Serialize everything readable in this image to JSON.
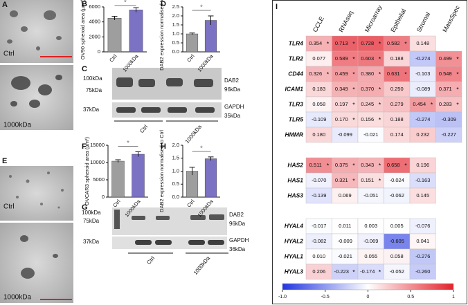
{
  "panels": {
    "A": {
      "letter": "A",
      "images": [
        {
          "label": "Ctrl"
        },
        {
          "label": "1000kDa"
        }
      ]
    },
    "E": {
      "letter": "E",
      "images": [
        {
          "label": "Ctrl"
        },
        {
          "label": "1000kDa"
        }
      ]
    },
    "C": {
      "letter": "C",
      "top_markers": [
        "100kDa",
        "75kDa"
      ],
      "top_target": "DAB2",
      "top_size": "96kDa",
      "bottom_marker": "37kDa",
      "bottom_target": "GAPDH",
      "bottom_size": "35kDa",
      "groups": [
        "Ctrl",
        "1000kDa"
      ]
    },
    "G": {
      "letter": "G",
      "top_markers": [
        "100kDa",
        "75kDa"
      ],
      "top_target": "DAB2",
      "top_size": "96kDa",
      "bottom_marker": "37kDa",
      "bottom_target": "GAPDH",
      "bottom_size": "36kDa",
      "groups": [
        "Ctrl",
        "1000kDa"
      ]
    }
  },
  "chart_data": [
    {
      "type": "bar",
      "letter": "B",
      "ylabel": "OV90 spheroid area (µm²)",
      "categories": [
        "Ctrl",
        "1000kDa"
      ],
      "values": [
        4500,
        5600
      ],
      "errors": [
        250,
        300
      ],
      "colors": [
        "#9e9e9e",
        "#7b72c4"
      ],
      "ylim": [
        0,
        6000
      ],
      "yticks": [
        0,
        2000,
        4000,
        6000
      ],
      "significance": "*"
    },
    {
      "type": "bar",
      "letter": "D",
      "ylabel": "DAB2 expression normalised to Ctrl",
      "categories": [
        "Ctrl",
        "1000kDa"
      ],
      "values": [
        1.0,
        1.75
      ],
      "errors": [
        0.05,
        0.25
      ],
      "colors": [
        "#9e9e9e",
        "#7b72c4"
      ],
      "ylim": [
        0,
        2.5
      ],
      "yticks": [
        {
          "value": 0,
          "label": "0.0"
        },
        {
          "value": 0.5,
          "label": "0.5"
        },
        {
          "value": 1,
          "label": "1.0"
        },
        {
          "value": 1.5,
          "label": "1.5"
        },
        {
          "value": 2,
          "label": "2.0"
        },
        {
          "value": 2.5,
          "label": "2.5"
        }
      ],
      "significance": "*"
    },
    {
      "type": "bar",
      "letter": "F",
      "ylabel": "OVCAR3 spheroid area (µm²)",
      "categories": [
        "Ctrl",
        "1000kDa"
      ],
      "values": [
        10400,
        12400
      ],
      "errors": [
        400,
        700
      ],
      "colors": [
        "#9e9e9e",
        "#7b72c4"
      ],
      "ylim": [
        0,
        15000
      ],
      "yticks": [
        0,
        5000,
        10000,
        15000
      ],
      "significance": "*"
    },
    {
      "type": "bar",
      "letter": "H",
      "ylabel": "DAB2 expression normalised to Ctrl",
      "categories": [
        "Ctrl",
        "1000kDa"
      ],
      "values": [
        1.0,
        1.48
      ],
      "errors": [
        0.15,
        0.07
      ],
      "colors": [
        "#9e9e9e",
        "#7b72c4"
      ],
      "ylim": [
        0,
        2
      ],
      "yticks": [
        {
          "value": 0,
          "label": "0.0"
        },
        {
          "value": 0.5,
          "label": "0.5"
        },
        {
          "value": 1,
          "label": "1.0"
        },
        {
          "value": 1.5,
          "label": "1.5"
        },
        {
          "value": 2,
          "label": "2.0"
        }
      ],
      "significance": "*"
    },
    {
      "type": "heatmap",
      "letter": "I",
      "columns": [
        "CCLE",
        "RNAseq",
        "Microarray",
        "Epithelial",
        "Stromal",
        "MassSpec"
      ],
      "star": "*",
      "clim": [
        -1,
        1
      ],
      "colorscale": [
        "#2236e0",
        "#ffffff",
        "#e3222c"
      ],
      "cbticks": [
        {
          "value": -1,
          "label": "-1.0"
        },
        -0.5,
        0,
        0.5,
        1
      ],
      "groups": [
        [
          {
            "label": "TLR4",
            "values": [
              0.354,
              0.713,
              0.728,
              0.582,
              0.148,
              null
            ],
            "value_labels": [
              "0.354",
              "0.713",
              "0.728",
              "0.582",
              "0.148",
              null
            ],
            "significant": [
              true,
              true,
              true,
              true,
              false,
              false
            ]
          },
          {
            "label": "TLR2",
            "values": [
              0.077,
              0.589,
              0.603,
              0.188,
              -0.274,
              0.499
            ],
            "value_labels": [
              "0.077",
              "0.589",
              "0.603",
              "0.188",
              "-0.274",
              "0.499"
            ],
            "significant": [
              false,
              true,
              true,
              false,
              false,
              true
            ]
          },
          {
            "label": "CD44",
            "values": [
              0.326,
              0.459,
              0.38,
              0.631,
              -0.103,
              0.548
            ],
            "value_labels": [
              "0.326",
              "0.459",
              "0.380",
              "0.631",
              "-0.103",
              "0.548"
            ],
            "significant": [
              true,
              true,
              true,
              true,
              false,
              true
            ]
          },
          {
            "label": "ICAM1",
            "values": [
              0.183,
              0.349,
              0.37,
              0.25,
              -0.089,
              0.371
            ],
            "value_labels": [
              "0.183",
              "0.349",
              "0.370",
              "0.250",
              "-0.089",
              "0.371"
            ],
            "significant": [
              false,
              true,
              true,
              false,
              false,
              true
            ]
          },
          {
            "label": "TLR3",
            "values": [
              0.058,
              0.197,
              0.245,
              0.279,
              0.454,
              0.283
            ],
            "value_labels": [
              "0.058",
              "0.197",
              "0.245",
              "0.279",
              "0.454",
              "0.283"
            ],
            "significant": [
              false,
              true,
              true,
              false,
              true,
              true
            ]
          },
          {
            "label": "TLR5",
            "values": [
              -0.109,
              0.17,
              0.156,
              0.188,
              -0.274,
              -0.309
            ],
            "value_labels": [
              "-0.109",
              "0.170",
              "0.156",
              "0.188",
              "-0.274",
              "-0.309"
            ],
            "significant": [
              false,
              true,
              true,
              false,
              false,
              false
            ]
          },
          {
            "label": "HMMR",
            "values": [
              0.18,
              -0.099,
              -0.021,
              0.174,
              0.232,
              -0.227
            ],
            "value_labels": [
              "0.180",
              "-0.099",
              "-0.021",
              "0.174",
              "0.232",
              "-0.227"
            ],
            "significant": [
              false,
              false,
              false,
              false,
              false,
              false
            ]
          }
        ],
        [
          {
            "label": "HAS2",
            "values": [
              0.511,
              0.375,
              0.343,
              0.658,
              0.196,
              null
            ],
            "value_labels": [
              "0.511",
              "0.375",
              "0.343",
              "0.658",
              "0.196",
              null
            ],
            "significant": [
              true,
              true,
              true,
              true,
              false,
              false
            ]
          },
          {
            "label": "HAS1",
            "values": [
              -0.07,
              0.321,
              0.151,
              -0.024,
              -0.163,
              null
            ],
            "value_labels": [
              "-0.070",
              "0.321",
              "0.151",
              "-0.024",
              "-0.163",
              null
            ],
            "significant": [
              false,
              true,
              true,
              false,
              false,
              false
            ]
          },
          {
            "label": "HAS3",
            "values": [
              -0.139,
              0.069,
              -0.051,
              -0.062,
              0.145,
              null
            ],
            "value_labels": [
              "-0.139",
              "0.069",
              "-0.051",
              "-0.062",
              "0.145",
              null
            ],
            "significant": [
              false,
              false,
              false,
              false,
              false,
              false
            ]
          }
        ],
        [
          {
            "label": "HYAL4",
            "values": [
              -0.017,
              0.011,
              0.003,
              0.005,
              -0.076,
              null
            ],
            "value_labels": [
              "-0.017",
              "0.011",
              "0.003",
              "0.005",
              "-0.076",
              null
            ],
            "significant": [
              false,
              false,
              false,
              false,
              false,
              false
            ]
          },
          {
            "label": "HYAL2",
            "values": [
              -0.082,
              -0.009,
              -0.069,
              -0.605,
              0.041,
              null
            ],
            "value_labels": [
              "-0.082",
              "-0.009",
              "-0.069",
              "-0.605",
              "0.041",
              null
            ],
            "significant": [
              false,
              false,
              false,
              false,
              false,
              false
            ]
          },
          {
            "label": "HYAL1",
            "values": [
              0.01,
              -0.021,
              0.055,
              0.058,
              -0.276,
              null
            ],
            "value_labels": [
              "0.010",
              "-0.021",
              "0.055",
              "0.058",
              "-0.276",
              null
            ],
            "significant": [
              false,
              false,
              false,
              false,
              false,
              false
            ]
          },
          {
            "label": "HYAL3",
            "values": [
              0.206,
              -0.223,
              -0.174,
              -0.052,
              -0.26,
              null
            ],
            "value_labels": [
              "0.206",
              "-0.223",
              "-0.174",
              "-0.052",
              "-0.260",
              null
            ],
            "significant": [
              false,
              true,
              true,
              false,
              false,
              false
            ]
          }
        ]
      ]
    }
  ]
}
